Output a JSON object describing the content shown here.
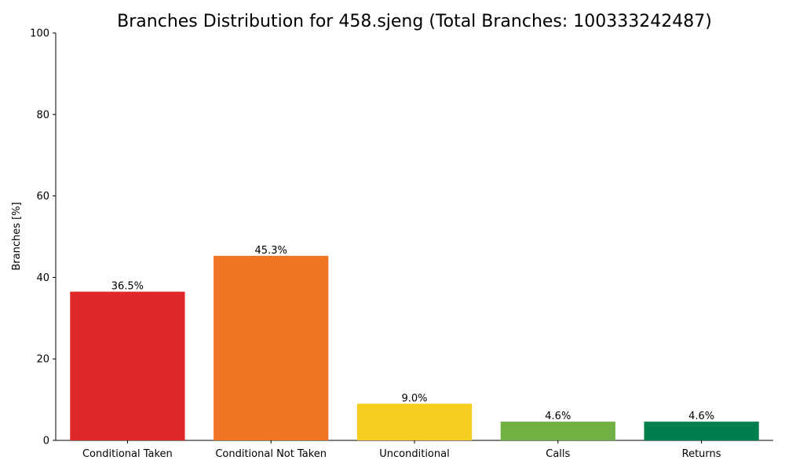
{
  "chart_data": {
    "type": "bar",
    "title": "Branches Distribution for 458.sjeng (Total Branches: 100333242487)",
    "xlabel": "",
    "ylabel": "Branches [%]",
    "categories": [
      "Conditional Taken",
      "Conditional Not Taken",
      "Unconditional",
      "Calls",
      "Returns"
    ],
    "values": [
      36.5,
      45.3,
      9.0,
      4.6,
      4.6
    ],
    "value_labels": [
      "36.5%",
      "45.3%",
      "9.0%",
      "4.6%",
      "4.6%"
    ],
    "colors": [
      "#e0282a",
      "#f17425",
      "#f6cc1e",
      "#71b043",
      "#007f4e"
    ],
    "ylim": [
      0,
      100
    ],
    "yticks": [
      0,
      20,
      40,
      60,
      80,
      100
    ],
    "grid": false,
    "legend": "none"
  }
}
